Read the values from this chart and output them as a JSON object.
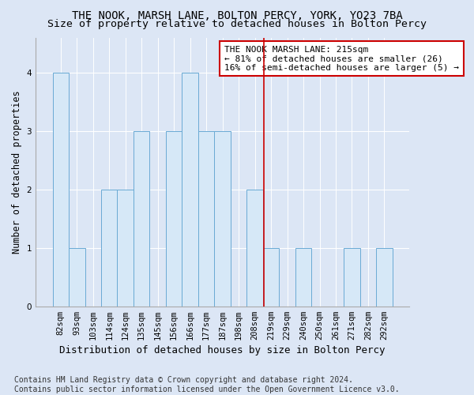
{
  "title_line1": "THE NOOK, MARSH LANE, BOLTON PERCY, YORK, YO23 7BA",
  "title_line2": "Size of property relative to detached houses in Bolton Percy",
  "xlabel": "Distribution of detached houses by size in Bolton Percy",
  "ylabel": "Number of detached properties",
  "bins": [
    "82sqm",
    "93sqm",
    "103sqm",
    "114sqm",
    "124sqm",
    "135sqm",
    "145sqm",
    "156sqm",
    "166sqm",
    "177sqm",
    "187sqm",
    "198sqm",
    "208sqm",
    "219sqm",
    "229sqm",
    "240sqm",
    "250sqm",
    "261sqm",
    "271sqm",
    "282sqm",
    "292sqm"
  ],
  "values": [
    4,
    1,
    0,
    2,
    2,
    3,
    0,
    3,
    4,
    3,
    3,
    0,
    2,
    1,
    0,
    1,
    0,
    0,
    1,
    0,
    1
  ],
  "bar_color": "#d6e8f7",
  "bar_edge_color": "#6aaad4",
  "vline_x_index": 12.58,
  "vline_color": "#cc0000",
  "annotation_text": "THE NOOK MARSH LANE: 215sqm\n← 81% of detached houses are smaller (26)\n16% of semi-detached houses are larger (5) →",
  "annotation_box_facecolor": "#ffffff",
  "annotation_box_edgecolor": "#cc0000",
  "ylim": [
    0,
    4.6
  ],
  "yticks": [
    0,
    1,
    2,
    3,
    4
  ],
  "plot_bg_color": "#dce6f5",
  "fig_bg_color": "#dce6f5",
  "footer_text": "Contains HM Land Registry data © Crown copyright and database right 2024.\nContains public sector information licensed under the Open Government Licence v3.0.",
  "title_fontsize": 10,
  "subtitle_fontsize": 9.5,
  "xlabel_fontsize": 9,
  "ylabel_fontsize": 8.5,
  "tick_fontsize": 7.5,
  "annotation_fontsize": 8,
  "footer_fontsize": 7
}
